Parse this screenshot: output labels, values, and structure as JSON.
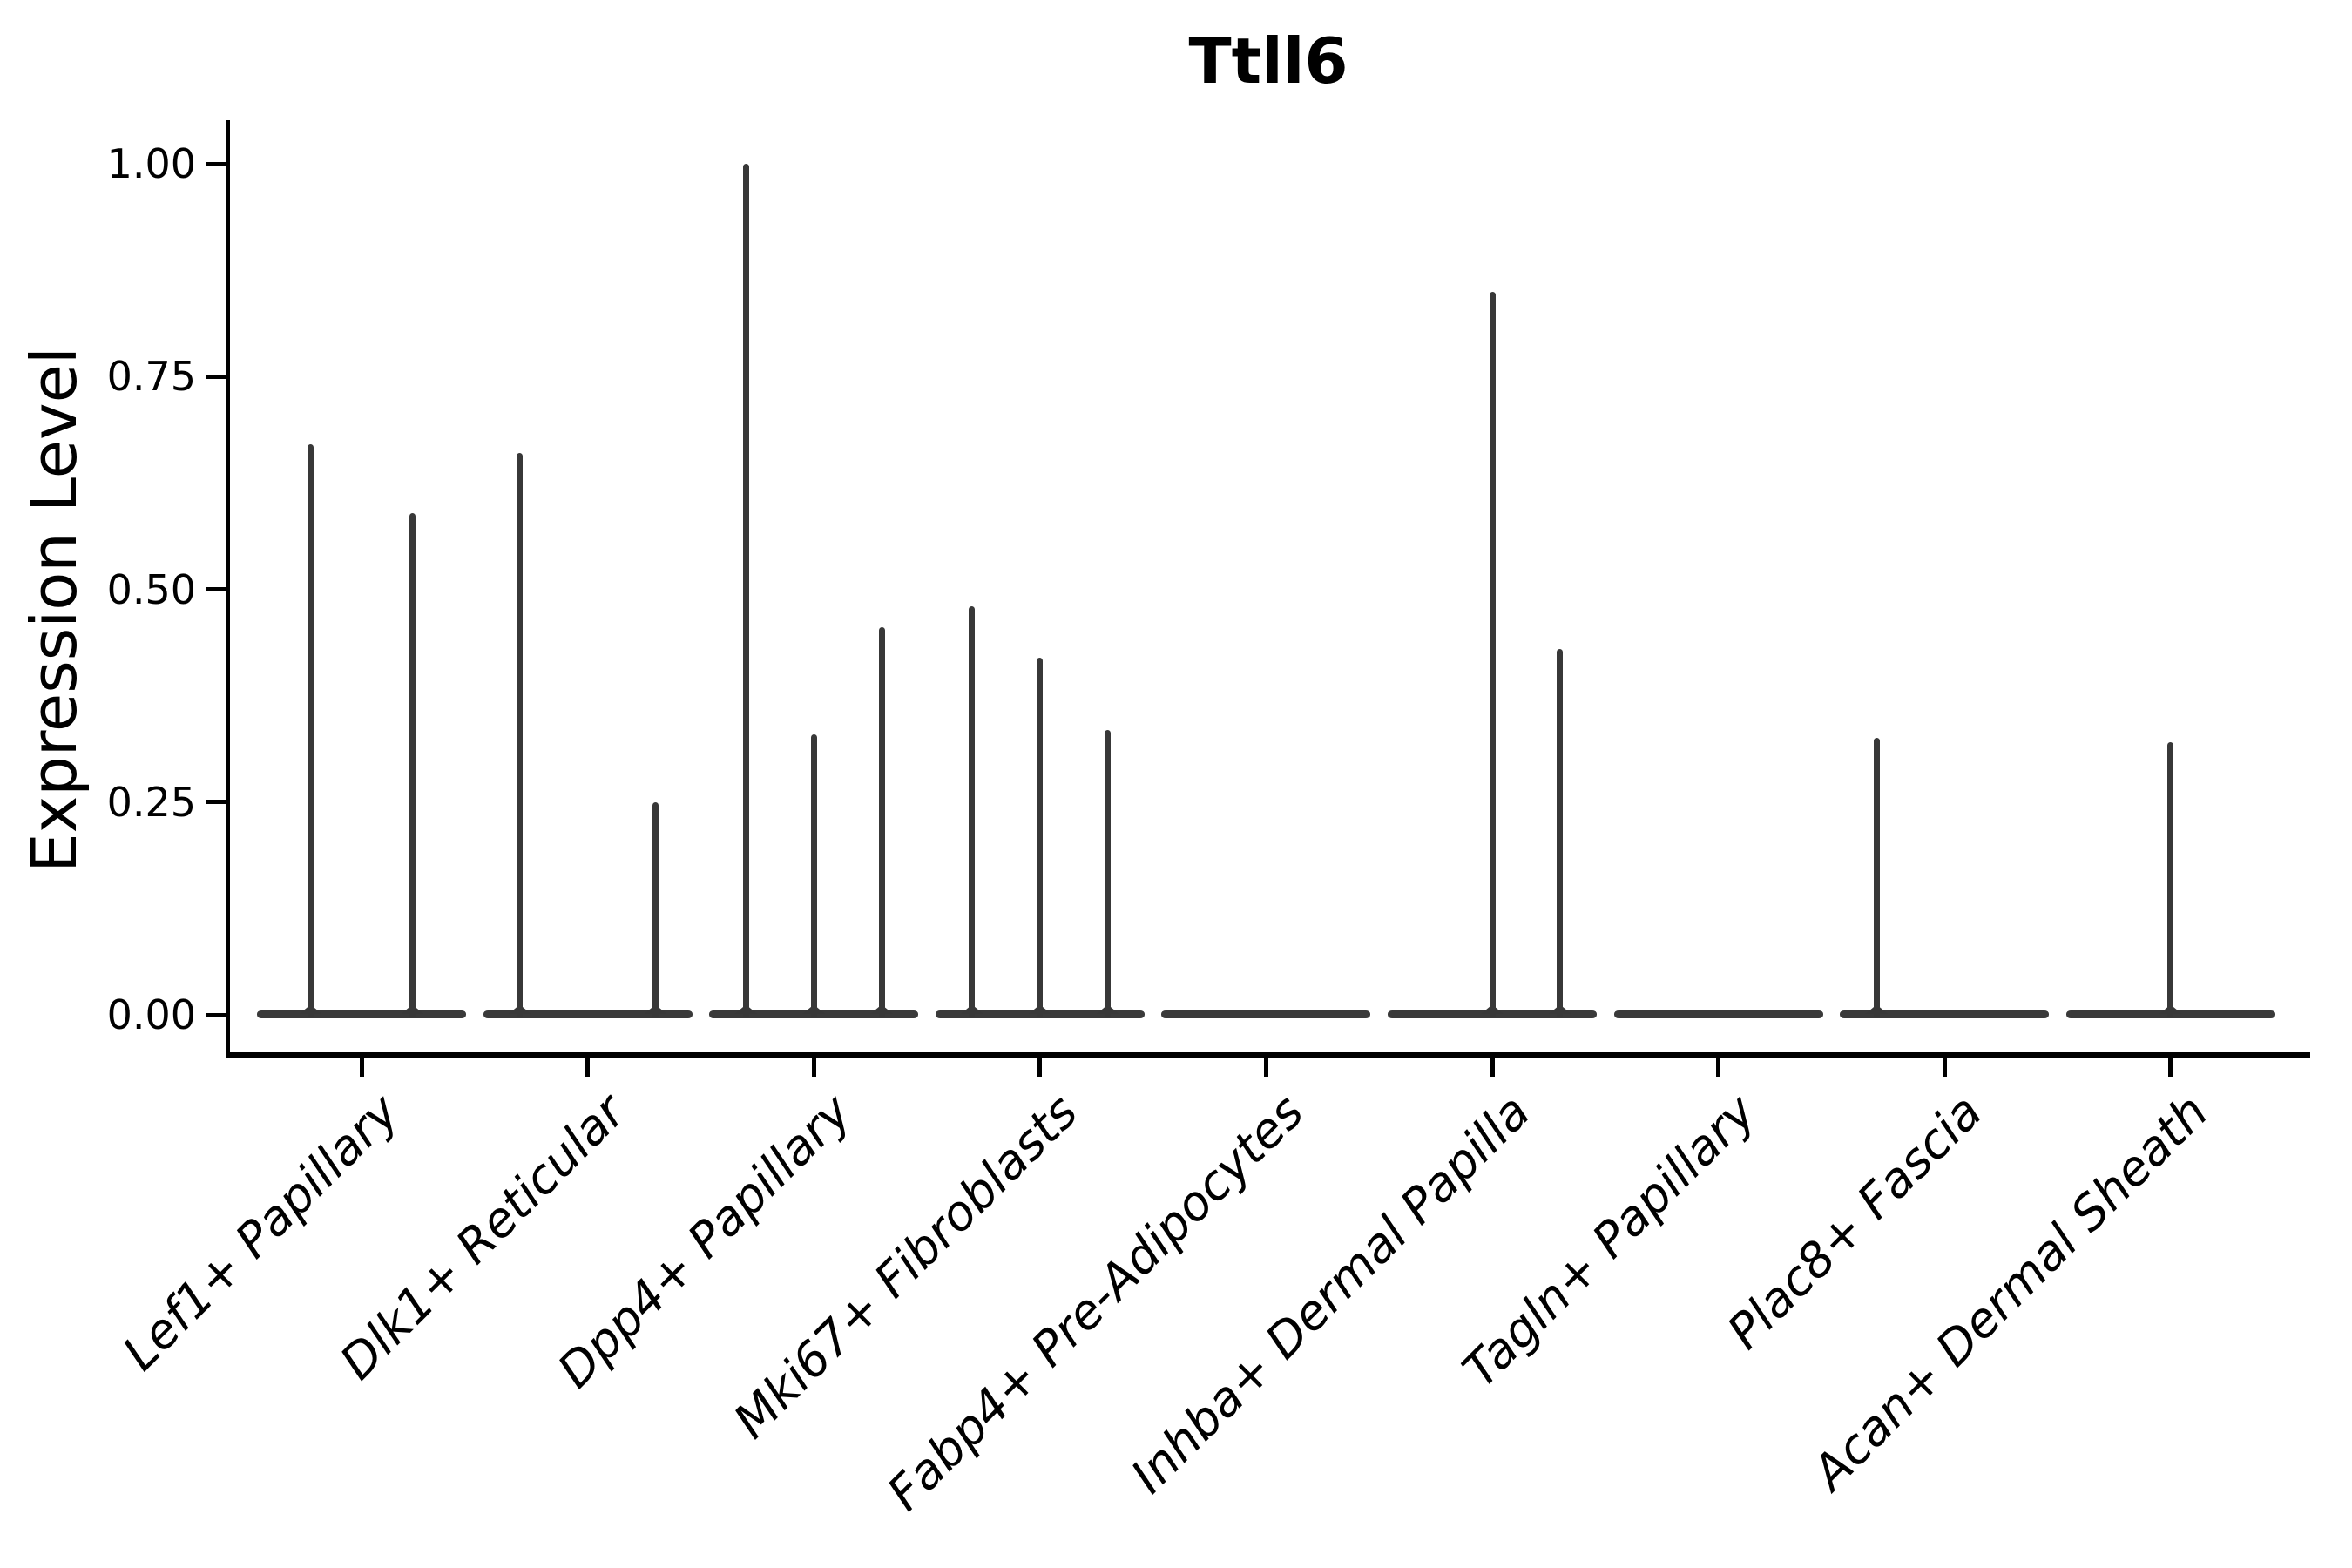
{
  "figure_title": "Ttll6",
  "chart_data": {
    "type": "violin",
    "title": "Ttll6",
    "xlabel": "",
    "ylabel": "Expression Level",
    "ylim": [
      0,
      1.05
    ],
    "yticks": [
      0,
      0.25,
      0.5,
      0.75,
      1.0
    ],
    "ytick_labels": [
      "0.00",
      "0.25",
      "0.50",
      "0.75",
      "1.00"
    ],
    "grid": false,
    "legend_position": "none",
    "style_note": "Seurat-style VlnPlot: violins collapse to a flat dark baseline at 0 with thin vertical density spikes at dodged sub-violin positions; only left and bottom spines; x labels rotated 45deg italic",
    "categories": [
      "Lef1+ Papillary",
      "Dlk1+ Reticular",
      "Dpp4+ Papillary",
      "Mki67+ Fibroblasts",
      "Fabp4+ Pre-Adipocytes",
      "Inhba+ Dermal Papilla",
      "Tagln+ Papillary",
      "Plac8+ Fascia",
      "Acan+ Dermal Sheath"
    ],
    "violins": [
      {
        "category": "Lef1+ Papillary",
        "baseline_value": 0,
        "spikes": [
          {
            "offset": -0.225,
            "peak": 0.67
          },
          {
            "offset": 0.225,
            "peak": 0.59
          }
        ]
      },
      {
        "category": "Dlk1+ Reticular",
        "baseline_value": 0,
        "spikes": [
          {
            "offset": -0.3,
            "peak": 0.66
          },
          {
            "offset": 0.3,
            "peak": 0.25
          }
        ]
      },
      {
        "category": "Dpp4+ Papillary",
        "baseline_value": 0,
        "spikes": [
          {
            "offset": -0.3,
            "peak": 1.0
          },
          {
            "offset": 0,
            "peak": 0.33
          },
          {
            "offset": 0.3,
            "peak": 0.455
          }
        ]
      },
      {
        "category": "Mki67+ Fibroblasts",
        "baseline_value": 0,
        "spikes": [
          {
            "offset": -0.3,
            "peak": 0.48
          },
          {
            "offset": 0,
            "peak": 0.42
          },
          {
            "offset": 0.3,
            "peak": 0.335
          }
        ]
      },
      {
        "category": "Fabp4+ Pre-Adipocytes",
        "baseline_value": 0,
        "spikes": []
      },
      {
        "category": "Inhba+ Dermal Papilla",
        "baseline_value": 0,
        "spikes": [
          {
            "offset": 0,
            "peak": 0.85
          },
          {
            "offset": 0.3,
            "peak": 0.43
          }
        ]
      },
      {
        "category": "Tagln+ Papillary",
        "baseline_value": 0,
        "spikes": []
      },
      {
        "category": "Plac8+ Fascia",
        "baseline_value": 0,
        "spikes": [
          {
            "offset": -0.3,
            "peak": 0.325
          }
        ]
      },
      {
        "category": "Acan+ Dermal Sheath",
        "baseline_value": 0,
        "spikes": [
          {
            "offset": 0,
            "peak": 0.32
          }
        ]
      }
    ],
    "colors": {
      "background": "#ffffff",
      "axis_ink": "#000000",
      "violin_ink": "#383838"
    }
  }
}
